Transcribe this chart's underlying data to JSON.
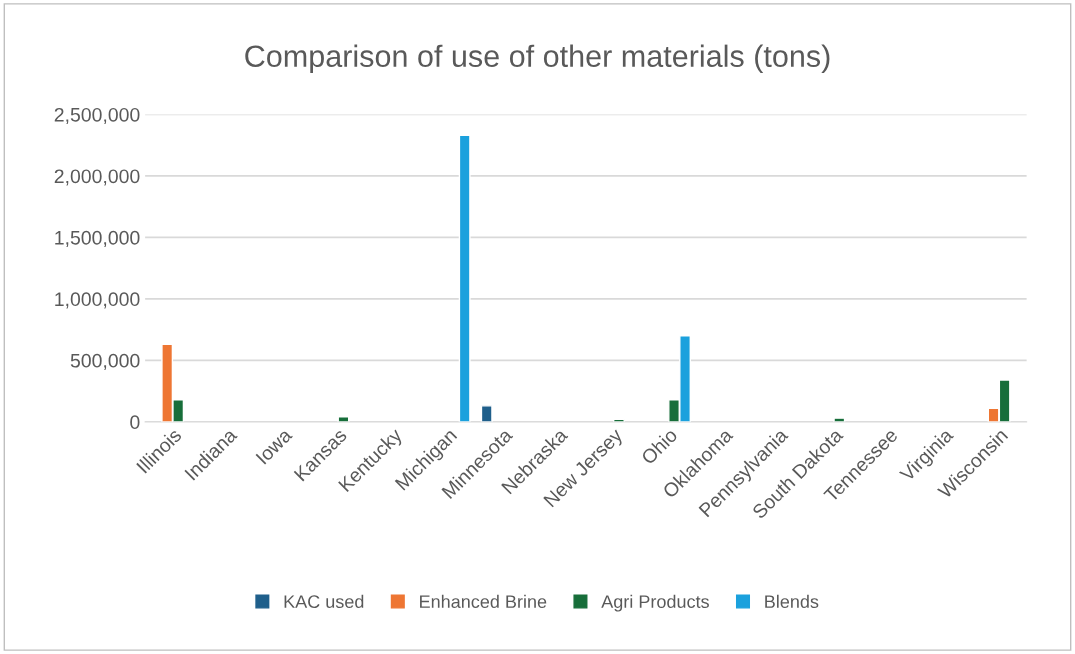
{
  "chart_data": {
    "type": "bar",
    "title": "Comparison of use of other materials (tons)",
    "categories": [
      "Illinois",
      "Indiana",
      "Iowa",
      "Kansas",
      "Kentucky",
      "Michigan",
      "Minnesota",
      "Nebraska",
      "New Jersey",
      "Ohio",
      "Oklahoma",
      "Pennsylvania",
      "South Dakota",
      "Tennessee",
      "Virginia",
      "Wisconsin"
    ],
    "series": [
      {
        "name": "KAC used",
        "color": "#1f5f8b",
        "values": [
          null,
          null,
          null,
          null,
          null,
          null,
          130000,
          null,
          null,
          null,
          null,
          null,
          null,
          null,
          null,
          null
        ]
      },
      {
        "name": "Enhanced Brine",
        "color": "#ee7633",
        "values": [
          630000,
          null,
          null,
          null,
          null,
          null,
          null,
          null,
          null,
          null,
          null,
          null,
          null,
          null,
          null,
          110000
        ]
      },
      {
        "name": "Agri Products",
        "color": "#176e3a",
        "values": [
          180000,
          null,
          null,
          40000,
          null,
          null,
          null,
          null,
          20000,
          180000,
          null,
          null,
          30000,
          null,
          null,
          340000
        ]
      },
      {
        "name": "Blends",
        "color": "#1ba1dd",
        "values": [
          null,
          null,
          null,
          null,
          null,
          2330000,
          null,
          null,
          null,
          700000,
          null,
          null,
          null,
          null,
          null,
          null
        ]
      }
    ],
    "ylim": [
      0,
      2500000
    ],
    "yticks": [
      {
        "value": 0,
        "label": "0"
      },
      {
        "value": 500000,
        "label": "500,000"
      },
      {
        "value": 1000000,
        "label": "1,000,000"
      },
      {
        "value": 1500000,
        "label": "1,500,000"
      },
      {
        "value": 2000000,
        "label": "2,000,000"
      },
      {
        "value": 2500000,
        "label": "2,500,000"
      }
    ],
    "grid": "y",
    "legend": "bottom"
  }
}
